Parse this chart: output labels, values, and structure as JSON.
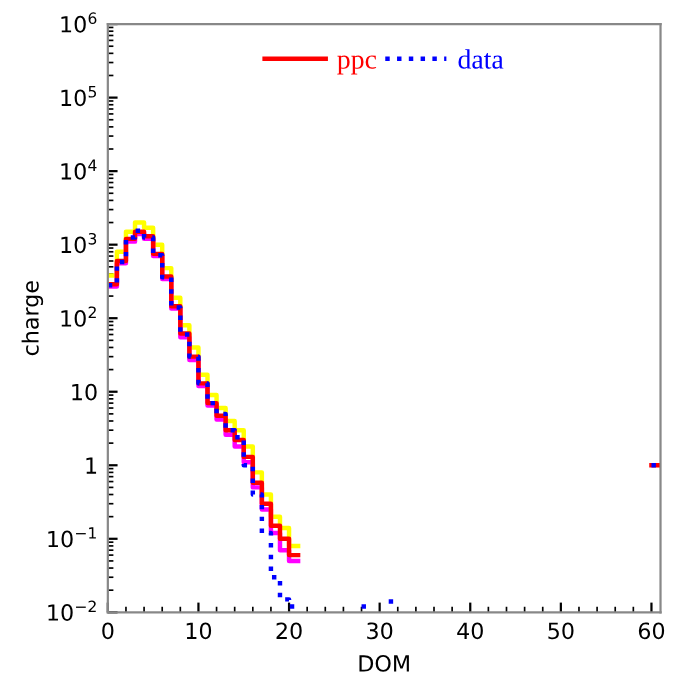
{
  "chart_data": {
    "type": "step",
    "xlabel": "DOM",
    "ylabel": "charge",
    "series": [
      {
        "color": "#ffff00",
        "line_style": "solid",
        "x": [
          0,
          1,
          2,
          3,
          4,
          5,
          6,
          7,
          8,
          9,
          10,
          11,
          12,
          13,
          14,
          15,
          16,
          17,
          18,
          19,
          20,
          21
        ],
        "values": [
          380,
          800,
          1500,
          2000,
          1700,
          1000,
          480,
          190,
          80,
          40,
          17,
          9,
          6,
          4,
          3,
          1.8,
          0.8,
          0.4,
          0.2,
          0.14,
          0.08,
          0.08
        ]
      },
      {
        "color": "#ff00ff",
        "line_style": "solid",
        "x": [
          0,
          1,
          2,
          3,
          4,
          5,
          6,
          7,
          8,
          9,
          10,
          11,
          12,
          13,
          14,
          15,
          16,
          17,
          18,
          19,
          20,
          21
        ],
        "values": [
          270,
          560,
          1100,
          1400,
          1200,
          700,
          340,
          135,
          55,
          27,
          12,
          6.5,
          4.2,
          2.6,
          1.8,
          1.1,
          0.5,
          0.25,
          0.12,
          0.07,
          0.05,
          0.05
        ]
      },
      {
        "name": "ppc",
        "color": "#ff0000",
        "line_style": "solid",
        "x": [
          0,
          1,
          2,
          3,
          4,
          5,
          6,
          7,
          8,
          9,
          10,
          11,
          12,
          13,
          14,
          15,
          16,
          17,
          18,
          19,
          20,
          21
        ],
        "values": [
          290,
          600,
          1200,
          1500,
          1300,
          750,
          370,
          145,
          62,
          30,
          13,
          7,
          4.7,
          3,
          2.2,
          1.3,
          0.58,
          0.3,
          0.15,
          0.1,
          0.06,
          0.06
        ]
      },
      {
        "color": "#ff0000",
        "line_style": "solid",
        "x": [
          60,
          61
        ],
        "values": [
          1,
          1
        ]
      },
      {
        "name": "data",
        "color": "#0000ff",
        "line_style": "dotted",
        "x": [
          0,
          1,
          2,
          3,
          4,
          5,
          6,
          7,
          8,
          9,
          10,
          11,
          12,
          13,
          14,
          15,
          16,
          17,
          18,
          19,
          20,
          21
        ],
        "values": [
          280,
          580,
          1250,
          1550,
          1250,
          720,
          360,
          140,
          60,
          30,
          13,
          7,
          5,
          3,
          2.4,
          1.0,
          0.4,
          0.12,
          0.03,
          0.015,
          0.012,
          0.012
        ]
      },
      {
        "color": "#0000ff",
        "line_style": "dotted",
        "x": [
          28,
          29
        ],
        "values": [
          0.012,
          0.012
        ]
      },
      {
        "color": "#0000ff",
        "line_style": "dotted",
        "x": [
          31,
          32
        ],
        "values": [
          0.014,
          0.014
        ]
      },
      {
        "color": "#0000ff",
        "line_style": "dotted",
        "x": [
          60,
          61
        ],
        "values": [
          1,
          1
        ]
      }
    ],
    "log": "y",
    "xlim": [
      0,
      61
    ],
    "ylim": [
      0.01,
      1000000
    ],
    "xticks": [
      0,
      10,
      20,
      30,
      40,
      50,
      60
    ],
    "yticks": [
      {
        "value": 0.01,
        "label": "10$^{−2}$"
      },
      {
        "value": 0.1,
        "label": "10$^{−1}$"
      },
      1,
      10,
      {
        "value": 100,
        "label": "10$^{2}$"
      },
      {
        "value": 1000,
        "label": "10$^{3}$"
      },
      {
        "value": 10000,
        "label": "10$^{4}$"
      },
      {
        "value": 100000,
        "label": "10$^{5}$"
      },
      {
        "value": 1000000,
        "label": "10$^{6}$"
      }
    ],
    "legend": "top",
    "grid": false
  }
}
